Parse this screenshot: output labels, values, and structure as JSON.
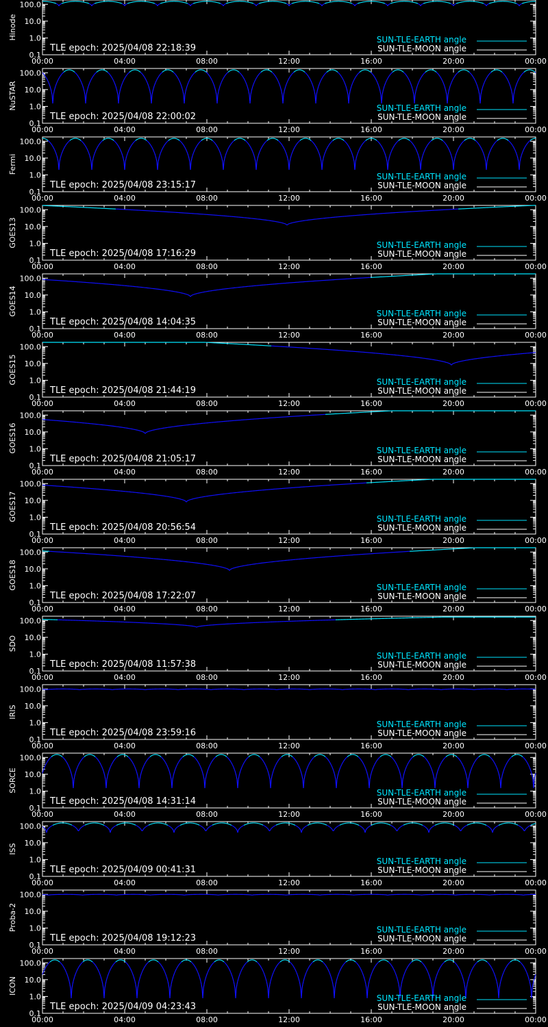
{
  "colors": {
    "background": "#000000",
    "axes": "#ffffff",
    "earth_angle": "#00e5ff",
    "moon_angle": "#ffffff",
    "curve_high": "#00e5ff",
    "curve_low": "#1010ff"
  },
  "x_tick_labels": [
    "00:00",
    "04:00",
    "08:00",
    "12:00",
    "16:00",
    "20:00",
    "00:00"
  ],
  "y_tick_labels": [
    "100.0",
    "10.0",
    "1.0",
    "0.1"
  ],
  "legend": {
    "earth_label": "SUN-TLE-EARTH angle",
    "moon_label": "SUN-TLE-MOON angle"
  },
  "chart_data": [
    {
      "type": "line",
      "ylabel": "Hinode",
      "tle_text": "TLE epoch: 2025/04/08 22:18:39",
      "xlim": [
        0,
        24
      ],
      "ylim": [
        0.1,
        180
      ],
      "yscale": "log",
      "series": [
        {
          "name": "SUN-TLE-EARTH angle",
          "pattern": "periodic",
          "period_h": 1.6,
          "max": 150,
          "min": 80,
          "phase_h": 0.8
        }
      ]
    },
    {
      "type": "line",
      "ylabel": "NuSTAR",
      "tle_text": "TLE epoch: 2025/04/08 22:00:02",
      "xlim": [
        0,
        24
      ],
      "ylim": [
        0.1,
        180
      ],
      "yscale": "log",
      "series": [
        {
          "name": "SUN-TLE-EARTH angle",
          "pattern": "periodic",
          "period_h": 1.6,
          "max": 150,
          "min": 1.5,
          "phase_h": 0.5
        }
      ]
    },
    {
      "type": "line",
      "ylabel": "Fermi",
      "tle_text": "TLE epoch: 2025/04/08 23:15:17",
      "xlim": [
        0,
        24
      ],
      "ylim": [
        0.1,
        180
      ],
      "yscale": "log",
      "series": [
        {
          "name": "SUN-TLE-EARTH angle",
          "pattern": "periodic",
          "period_h": 1.6,
          "max": 150,
          "min": 2.0,
          "phase_h": 0.8
        }
      ]
    },
    {
      "type": "line",
      "ylabel": "GOES13",
      "tle_text": "TLE epoch: 2025/04/08 17:16:29",
      "xlim": [
        0,
        24
      ],
      "ylim": [
        0.1,
        180
      ],
      "yscale": "log",
      "series": [
        {
          "name": "SUN-TLE-EARTH angle",
          "pattern": "vdip",
          "dip_h": 11.9,
          "max": 180,
          "min": 12
        }
      ]
    },
    {
      "type": "line",
      "ylabel": "GOES14",
      "tle_text": "TLE epoch: 2025/04/08 14:04:35",
      "xlim": [
        0,
        24
      ],
      "ylim": [
        0.1,
        180
      ],
      "yscale": "log",
      "series": [
        {
          "name": "SUN-TLE-EARTH angle",
          "pattern": "vdip",
          "dip_h": 7.2,
          "max": 180,
          "min": 8
        }
      ]
    },
    {
      "type": "line",
      "ylabel": "GOES15",
      "tle_text": "TLE epoch: 2025/04/08 21:44:19",
      "xlim": [
        0,
        24
      ],
      "ylim": [
        0.1,
        180
      ],
      "yscale": "log",
      "series": [
        {
          "name": "SUN-TLE-EARTH angle",
          "pattern": "vdip",
          "dip_h": 19.9,
          "max": 180,
          "min": 8
        }
      ]
    },
    {
      "type": "line",
      "ylabel": "GOES16",
      "tle_text": "TLE epoch: 2025/04/08 21:05:17",
      "xlim": [
        0,
        24
      ],
      "ylim": [
        0.1,
        180
      ],
      "yscale": "log",
      "series": [
        {
          "name": "SUN-TLE-EARTH angle",
          "pattern": "vdip",
          "dip_h": 5.0,
          "max": 180,
          "min": 8
        }
      ]
    },
    {
      "type": "line",
      "ylabel": "GOES17",
      "tle_text": "TLE epoch: 2025/04/08 20:56:54",
      "xlim": [
        0,
        24
      ],
      "ylim": [
        0.1,
        180
      ],
      "yscale": "log",
      "series": [
        {
          "name": "SUN-TLE-EARTH angle",
          "pattern": "vdip",
          "dip_h": 7.0,
          "max": 180,
          "min": 8
        }
      ]
    },
    {
      "type": "line",
      "ylabel": "GOES18",
      "tle_text": "TLE epoch: 2025/04/08 17:22:07",
      "xlim": [
        0,
        24
      ],
      "ylim": [
        0.1,
        180
      ],
      "yscale": "log",
      "series": [
        {
          "name": "SUN-TLE-EARTH angle",
          "pattern": "vdip",
          "dip_h": 9.1,
          "max": 180,
          "min": 8
        }
      ]
    },
    {
      "type": "line",
      "ylabel": "SDO",
      "tle_text": "TLE epoch: 2025/04/08 11:57:38",
      "xlim": [
        0,
        24
      ],
      "ylim": [
        0.1,
        180
      ],
      "yscale": "log",
      "series": [
        {
          "name": "SUN-TLE-EARTH angle",
          "pattern": "vdip",
          "dip_h": 7.5,
          "max": 160,
          "min": 40
        }
      ]
    },
    {
      "type": "line",
      "ylabel": "IRIS",
      "tle_text": "TLE epoch: 2025/04/08 23:59:16",
      "xlim": [
        0,
        24
      ],
      "ylim": [
        0.1,
        180
      ],
      "yscale": "log",
      "series": [
        {
          "name": "SUN-TLE-EARTH angle",
          "pattern": "periodic",
          "period_h": 1.6,
          "max": 100,
          "min": 90,
          "phase_h": 0.2
        }
      ]
    },
    {
      "type": "line",
      "ylabel": "SORCE",
      "tle_text": "TLE epoch: 2025/04/08 14:31:14",
      "xlim": [
        0,
        24
      ],
      "ylim": [
        0.1,
        180
      ],
      "yscale": "log",
      "series": [
        {
          "name": "SUN-TLE-EARTH angle",
          "pattern": "periodic",
          "period_h": 1.6,
          "max": 150,
          "min": 1.5,
          "phase_h": 1.5
        }
      ]
    },
    {
      "type": "line",
      "ylabel": "ISS",
      "tle_text": "TLE epoch: 2025/04/09 00:41:31",
      "xlim": [
        0,
        24
      ],
      "ylim": [
        0.1,
        180
      ],
      "yscale": "log",
      "series": [
        {
          "name": "SUN-TLE-EARTH angle",
          "pattern": "periodic",
          "period_h": 1.55,
          "max": 150,
          "min": 40,
          "phase_h": 0.2
        }
      ]
    },
    {
      "type": "line",
      "ylabel": "Proba-2",
      "tle_text": "TLE epoch: 2025/04/08 19:12:23",
      "xlim": [
        0,
        24
      ],
      "ylim": [
        0.1,
        180
      ],
      "yscale": "log",
      "series": [
        {
          "name": "SUN-TLE-EARTH angle",
          "pattern": "periodic",
          "period_h": 1.65,
          "max": 100,
          "min": 90,
          "phase_h": 0.3
        }
      ]
    },
    {
      "type": "line",
      "ylabel": "ICON",
      "tle_text": "TLE epoch: 2025/04/09 04:23:43",
      "xlim": [
        0,
        24
      ],
      "ylim": [
        0.1,
        180
      ],
      "yscale": "log",
      "series": [
        {
          "name": "SUN-TLE-EARTH angle",
          "pattern": "periodic",
          "period_h": 1.6,
          "max": 150,
          "min": 0.8,
          "phase_h": 1.4
        }
      ]
    }
  ]
}
